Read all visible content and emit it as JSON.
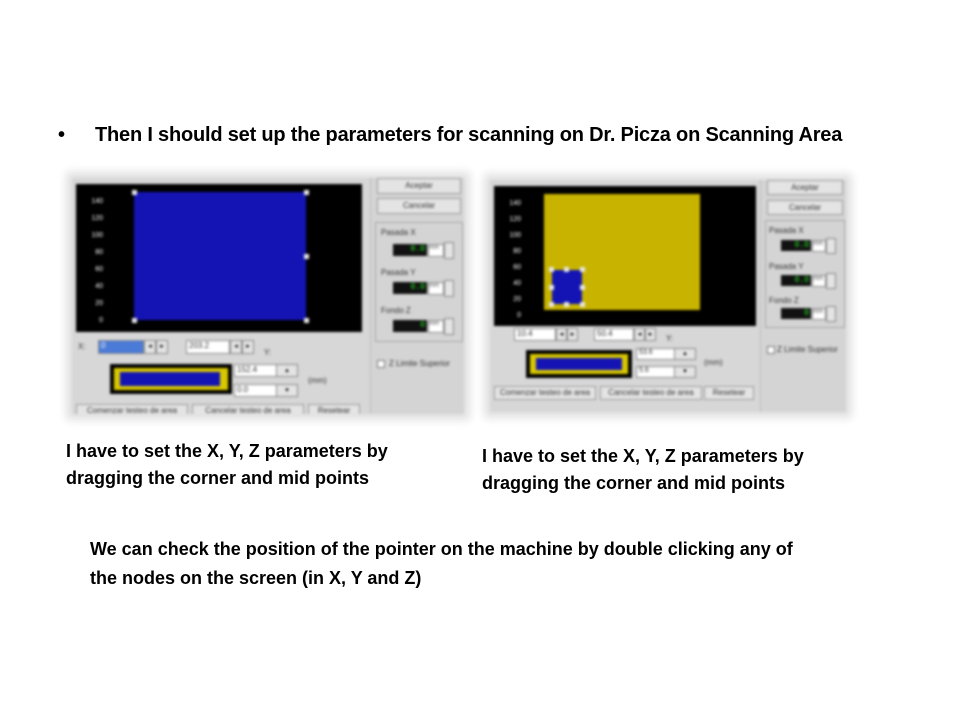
{
  "slide": {
    "title": "Then I should set up the parameters for scanning on Dr. Picza  on Scanning Area",
    "caption_left": "I have to set the X, Y, Z parameters by dragging the corner and mid points",
    "caption_right": "I have to set the X, Y, Z parameters by dragging the corner and mid points",
    "note": "We can check the position of the pointer on the machine by double clicking any of the nodes on the screen (in X, Y and Z)"
  },
  "screenshot_left": {
    "accept_label": "Aceptar",
    "cancel_label": "Cancelar",
    "pasada_x_label": "Pasada X",
    "pasada_y_label": "Pasada Y",
    "fondo_z_label": "Fondo Z",
    "pasada_x_value": "0.0",
    "pasada_y_value": "0.0",
    "fondo_z_value": "0",
    "unit": "mm",
    "z_limit_label": "Z Limite Superior",
    "x_label": "X:",
    "y_label": "Y:",
    "x_start": "0",
    "x_end": "203.2",
    "y_start": "152.4",
    "y_end": "0.0",
    "mm_label": "(mm)",
    "start_test_label": "Comenzar testeo de area",
    "cancel_test_label": "Cancelar testeo de area",
    "reset_label": "Resetear",
    "y_ticks": [
      "140",
      "120",
      "100",
      "80",
      "60",
      "40",
      "20",
      "0"
    ],
    "field_color": "#1414b4"
  },
  "screenshot_right": {
    "accept_label": "Aceptar",
    "cancel_label": "Cancelar",
    "pasada_x_label": "Pasada X",
    "pasada_y_label": "Pasada Y",
    "fondo_z_label": "Fondo Z",
    "pasada_x_value": "0.0",
    "pasada_y_value": "0.0",
    "fondo_z_value": "0",
    "unit": "mm",
    "z_limit_label": "Z Limite Superior",
    "x_start": "10.4",
    "x_end": "50.4",
    "y_label": "Y:",
    "y_start": "53.6",
    "y_end": "5.6",
    "mm_label": "(mm)",
    "start_test_label": "Comenzar testeo de area",
    "cancel_test_label": "Cancelar testeo de area",
    "reset_label": "Resetear",
    "y_ticks": [
      "140",
      "120",
      "100",
      "80",
      "60",
      "40",
      "20",
      "0"
    ],
    "field_color": "#c8b400",
    "selection_color": "#1414b4"
  }
}
